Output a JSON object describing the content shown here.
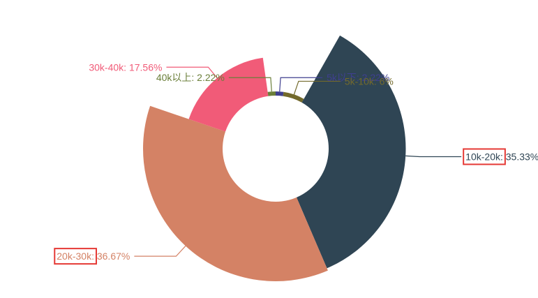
{
  "chart_data": {
    "type": "pie",
    "variant": "rose",
    "title": "",
    "series": [
      {
        "name": "",
        "data": [
          {
            "name": "5k以下",
            "label": "5k以下: 2.22%",
            "value": 2.22,
            "color": "#3f3f8f"
          },
          {
            "name": "5k-10k",
            "label": "5k-10k: 6%",
            "value": 6,
            "color": "#736a2c"
          },
          {
            "name": "10k-20k",
            "label": "10k-20k: 35.33%",
            "value": 35.33,
            "color": "#2f4554"
          },
          {
            "name": "20k-30k",
            "label": "20k-30k: 36.67%",
            "value": 36.67,
            "color": "#d48265"
          },
          {
            "name": "30k-40k",
            "label": "30k-40k: 17.56%",
            "value": 17.56,
            "color": "#f15b78"
          },
          {
            "name": "40k以上",
            "label": "40k以上: 2.22%",
            "value": 2.22,
            "color": "#6b7f3a"
          }
        ]
      }
    ],
    "highlighted_labels": [
      "10k-20k:",
      "20k-30k:"
    ],
    "highlight_color": "#e53935"
  }
}
